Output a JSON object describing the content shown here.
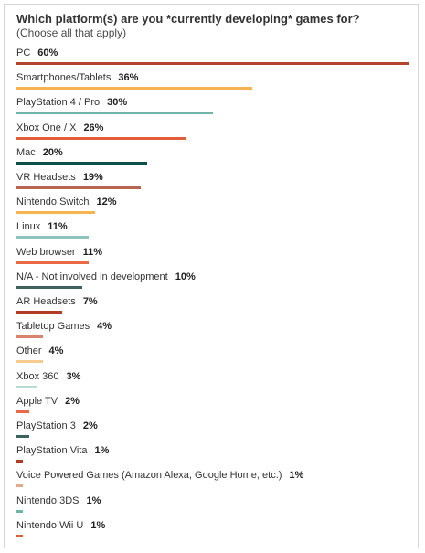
{
  "chart_data": {
    "type": "bar",
    "orientation": "horizontal",
    "title": "Which platform(s) are you *currently developing* games for?",
    "subtitle": "(Choose all that apply)",
    "xlabel": "",
    "ylabel": "",
    "xlim": [
      0,
      60
    ],
    "grid": false,
    "categories": [
      "PC",
      "Smartphones/Tablets",
      "PlayStation 4 / Pro",
      "Xbox One / X",
      "Mac",
      "VR Headsets",
      "Nintendo Switch",
      "Linux",
      "Web browser",
      "N/A - Not involved in development",
      "AR Headsets",
      "Tabletop Games",
      "Other",
      "Xbox 360",
      "Apple TV",
      "PlayStation 3",
      "PlayStation Vita",
      "Voice Powered Games (Amazon Alexa, Google Home, etc.)",
      "Nintendo 3DS",
      "Nintendo Wii U"
    ],
    "values": [
      60,
      36,
      30,
      26,
      20,
      19,
      12,
      11,
      11,
      10,
      7,
      4,
      4,
      3,
      2,
      2,
      1,
      1,
      1,
      1
    ],
    "value_labels": [
      "60%",
      "36%",
      "30%",
      "26%",
      "20%",
      "19%",
      "12%",
      "11%",
      "11%",
      "10%",
      "7%",
      "4%",
      "4%",
      "3%",
      "2%",
      "2%",
      "1%",
      "1%",
      "1%",
      "1%"
    ],
    "colors": [
      "#b5452e",
      "#f5b450",
      "#6fb5a8",
      "#e35d3a",
      "#0e4f4a",
      "#b96650",
      "#f5b450",
      "#8ec3b9",
      "#e86a47",
      "#3c6260",
      "#b23b24",
      "#d9826c",
      "#f8cc8f",
      "#b9dbd5",
      "#e86a47",
      "#3c6260",
      "#b23b24",
      "#e3a98f",
      "#6fb5a8",
      "#e35d3a"
    ]
  }
}
